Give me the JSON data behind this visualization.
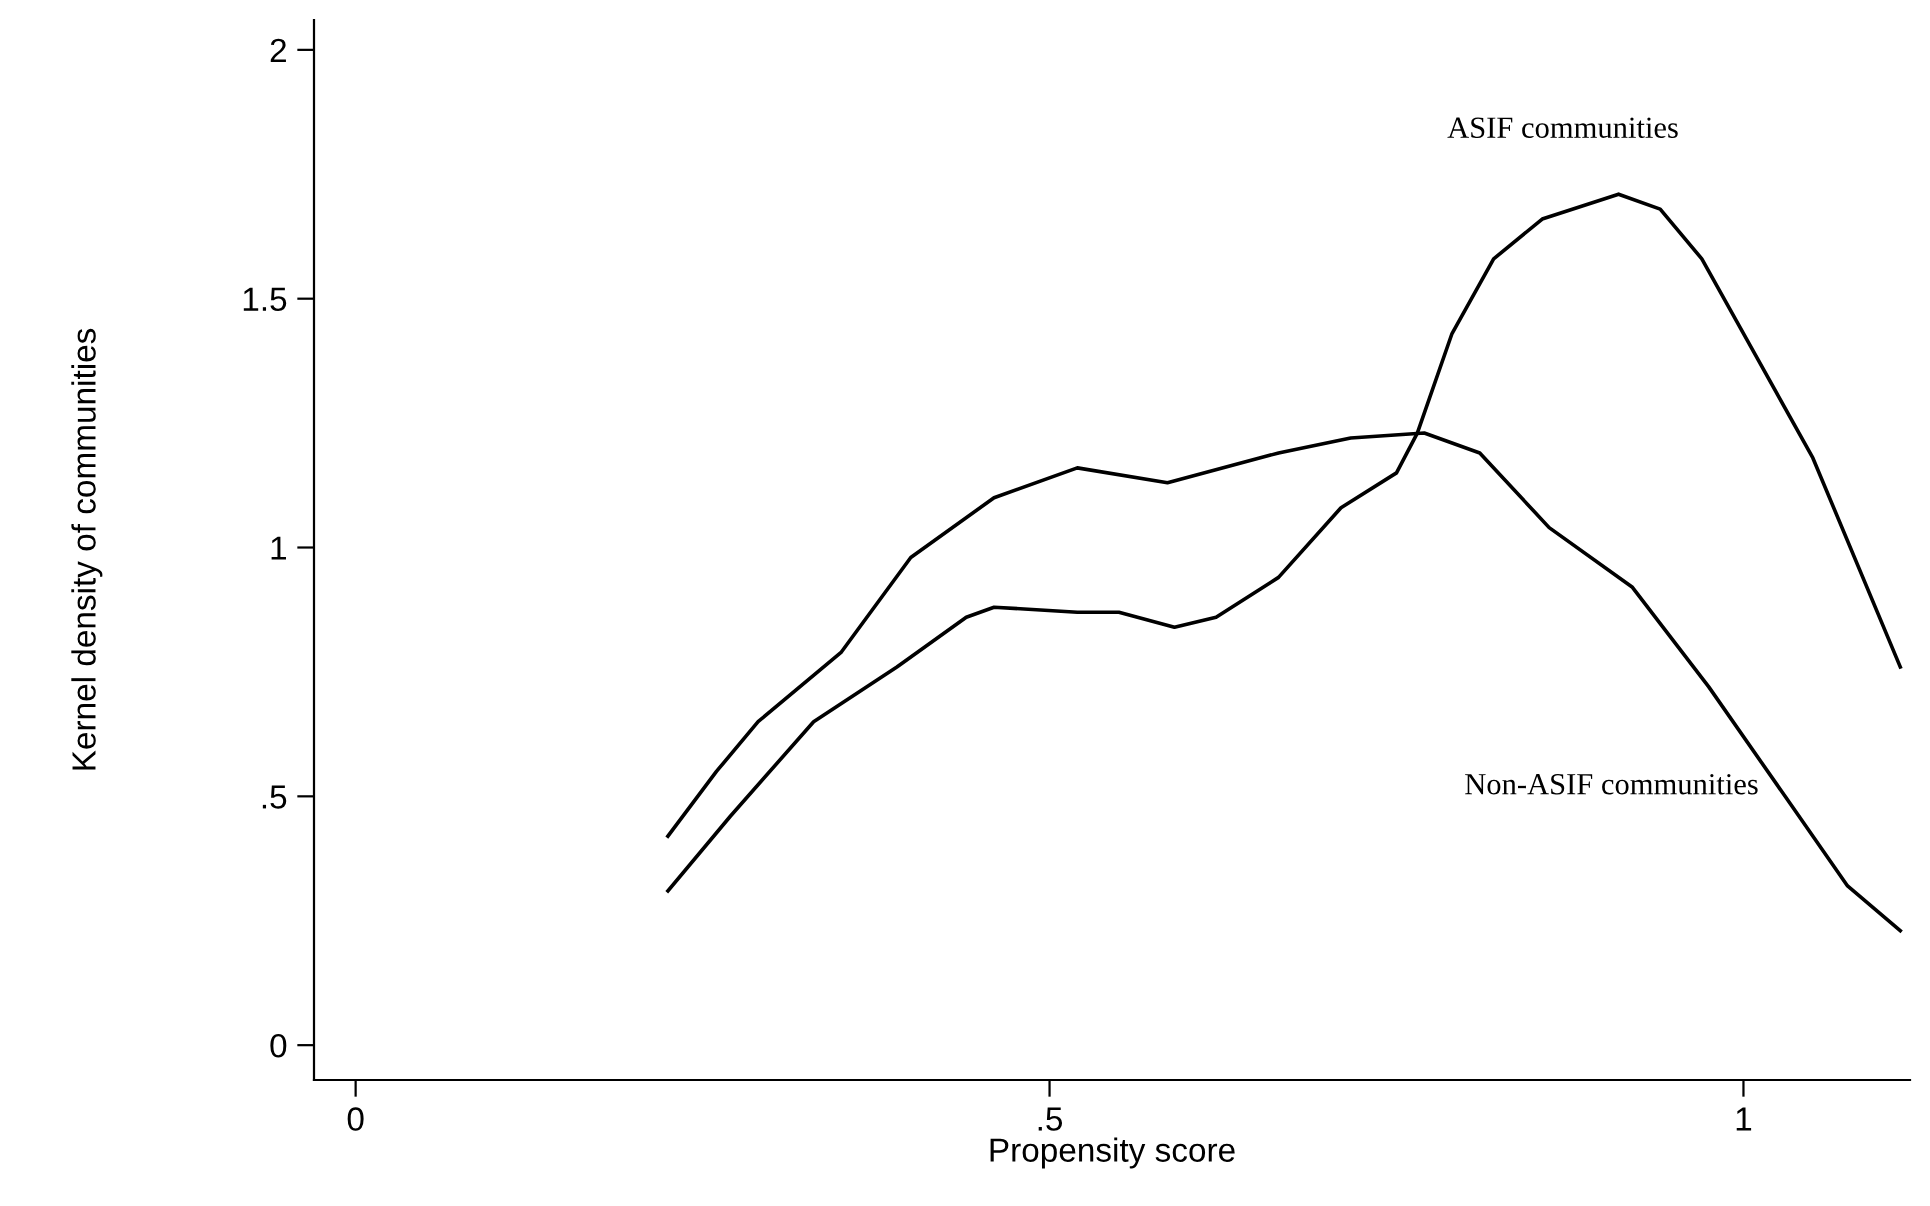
{
  "chart_data": {
    "type": "line",
    "xlabel": "Propensity score",
    "ylabel": "Kernel density of communities",
    "xlim": [
      -0.03,
      1.12
    ],
    "ylim": [
      -0.07,
      2.06
    ],
    "xticks": [
      0,
      {
        "value": 0.5,
        "label": ".5"
      },
      1
    ],
    "yticks": [
      0,
      {
        "value": 0.5,
        "label": ".5"
      },
      1,
      1.5,
      2
    ],
    "grid": false,
    "legend": false,
    "series": [
      {
        "name": "Non-ASIF communities",
        "color": "#000000",
        "x": [
          0.225,
          0.26,
          0.29,
          0.35,
          0.4,
          0.46,
          0.52,
          0.585,
          0.665,
          0.717,
          0.77,
          0.81,
          0.86,
          0.92,
          0.975,
          1.03,
          1.075,
          1.113
        ],
        "values": [
          0.42,
          0.55,
          0.65,
          0.79,
          0.98,
          1.1,
          1.16,
          1.13,
          1.19,
          1.22,
          1.23,
          1.19,
          1.04,
          0.92,
          0.72,
          0.5,
          0.32,
          0.23
        ]
      },
      {
        "name": "ASIF communities",
        "color": "#000000",
        "x": [
          0.225,
          0.27,
          0.33,
          0.39,
          0.44,
          0.46,
          0.52,
          0.55,
          0.59,
          0.62,
          0.665,
          0.71,
          0.75,
          0.765,
          0.79,
          0.82,
          0.855,
          0.91,
          0.94,
          0.97,
          1.01,
          1.05,
          1.113
        ],
        "values": [
          0.31,
          0.46,
          0.65,
          0.76,
          0.86,
          0.88,
          0.87,
          0.87,
          0.84,
          0.86,
          0.94,
          1.08,
          1.15,
          1.23,
          1.43,
          1.58,
          1.66,
          1.71,
          1.68,
          1.58,
          1.38,
          1.18,
          0.76
        ]
      }
    ]
  }
}
